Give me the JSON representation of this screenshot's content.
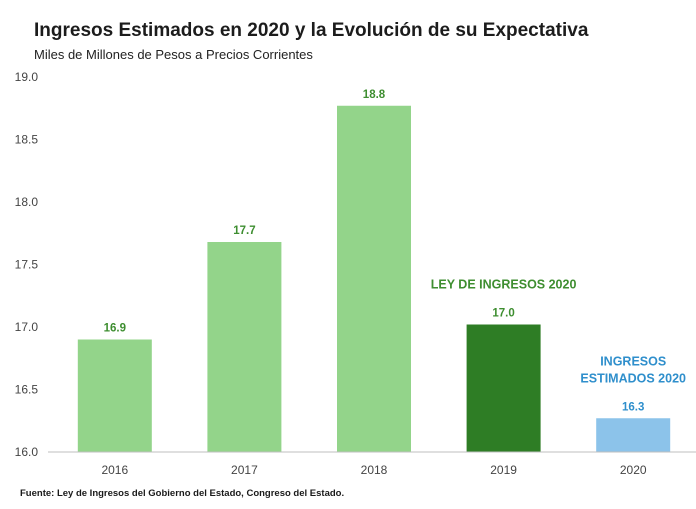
{
  "header": {
    "title": "Ingresos Estimados en 2020 y la Evolución de su Expectativa",
    "subtitle": "Miles de Millones de Pesos a Precios Corrientes"
  },
  "footer": {
    "source": "Fuente: Ley de Ingresos del Gobierno del Estado, Congreso del Estado."
  },
  "colors": {
    "light_green": "#93d48a",
    "dark_green": "#2e7d25",
    "light_blue": "#8cc3ea",
    "label_green": "#3e8e30",
    "label_blue": "#2f8fcc"
  },
  "chart_data": {
    "type": "bar",
    "categories": [
      "2016",
      "2017",
      "2018",
      "2019",
      "2020"
    ],
    "values": [
      16.9,
      17.7,
      18.8,
      17.0,
      16.3
    ],
    "plotted_values": [
      16.9,
      17.68,
      18.77,
      17.02,
      16.27
    ],
    "value_labels": [
      "16.9",
      "17.7",
      "18.8",
      "17.0",
      "16.3"
    ],
    "bar_colors": [
      "#93d48a",
      "#93d48a",
      "#93d48a",
      "#2e7d25",
      "#8cc3ea"
    ],
    "label_colors": [
      "#3e8e30",
      "#3e8e30",
      "#3e8e30",
      "#3e8e30",
      "#2f8fcc"
    ],
    "ylim": [
      16.0,
      19.0
    ],
    "yticks": [
      "16.0",
      "16.5",
      "17.0",
      "17.5",
      "18.0",
      "18.5",
      "19.0"
    ],
    "grid": false,
    "annotations": [
      {
        "category": "2019",
        "lines": [
          "LEY DE INGRESOS 2020"
        ],
        "color": "#3e8e30"
      },
      {
        "category": "2020",
        "lines": [
          "INGRESOS",
          "ESTIMADOS 2020"
        ],
        "color": "#2f8fcc"
      }
    ]
  }
}
